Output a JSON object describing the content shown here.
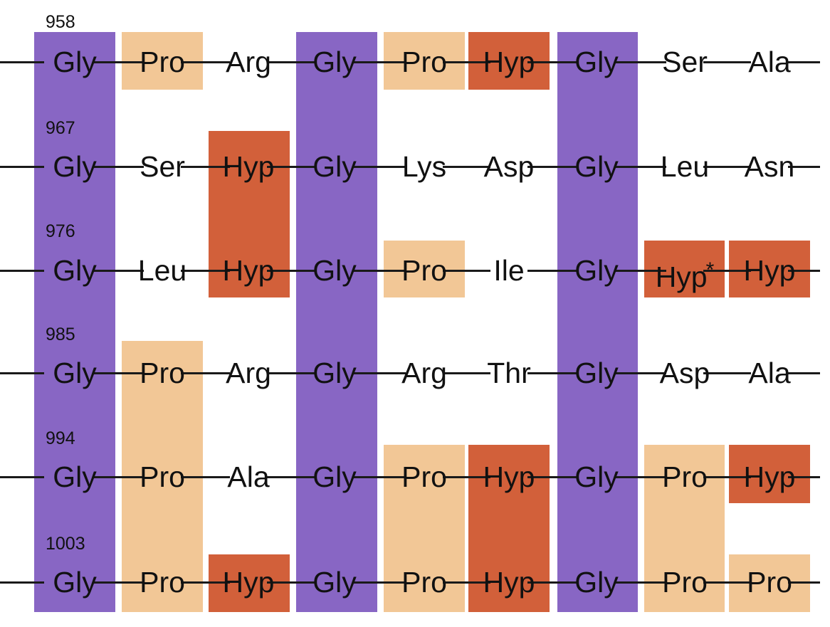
{
  "colors": {
    "gly": "#8866c4",
    "pro": "#f2c796",
    "hyp": "#d2603a",
    "line": "#1a1a1a",
    "text": "#111111"
  },
  "rows": [
    {
      "number": "958",
      "residues": [
        "Gly",
        "Pro",
        "Arg",
        "Gly",
        "Pro",
        "Hyp",
        "Gly",
        "Ser",
        "Ala"
      ]
    },
    {
      "number": "967",
      "residues": [
        "Gly",
        "Ser",
        "Hyp",
        "Gly",
        "Lys",
        "Asp",
        "Gly",
        "Leu",
        "Asn"
      ]
    },
    {
      "number": "976",
      "residues": [
        "Gly",
        "Leu",
        "Hyp",
        "Gly",
        "Pro",
        "Ile",
        "Gly",
        "Hyp",
        "Hyp"
      ],
      "marked_residue": {
        "index": 7,
        "mark": "*"
      }
    },
    {
      "number": "985",
      "residues": [
        "Gly",
        "Pro",
        "Arg",
        "Gly",
        "Arg",
        "Thr",
        "Gly",
        "Asp",
        "Ala"
      ]
    },
    {
      "number": "994",
      "residues": [
        "Gly",
        "Pro",
        "Ala",
        "Gly",
        "Pro",
        "Hyp",
        "Gly",
        "Pro",
        "Hyp"
      ]
    },
    {
      "number": "1003",
      "residues": [
        "Gly",
        "Pro",
        "Hyp",
        "Gly",
        "Pro",
        "Hyp",
        "Gly",
        "Pro",
        "Pro"
      ]
    }
  ]
}
